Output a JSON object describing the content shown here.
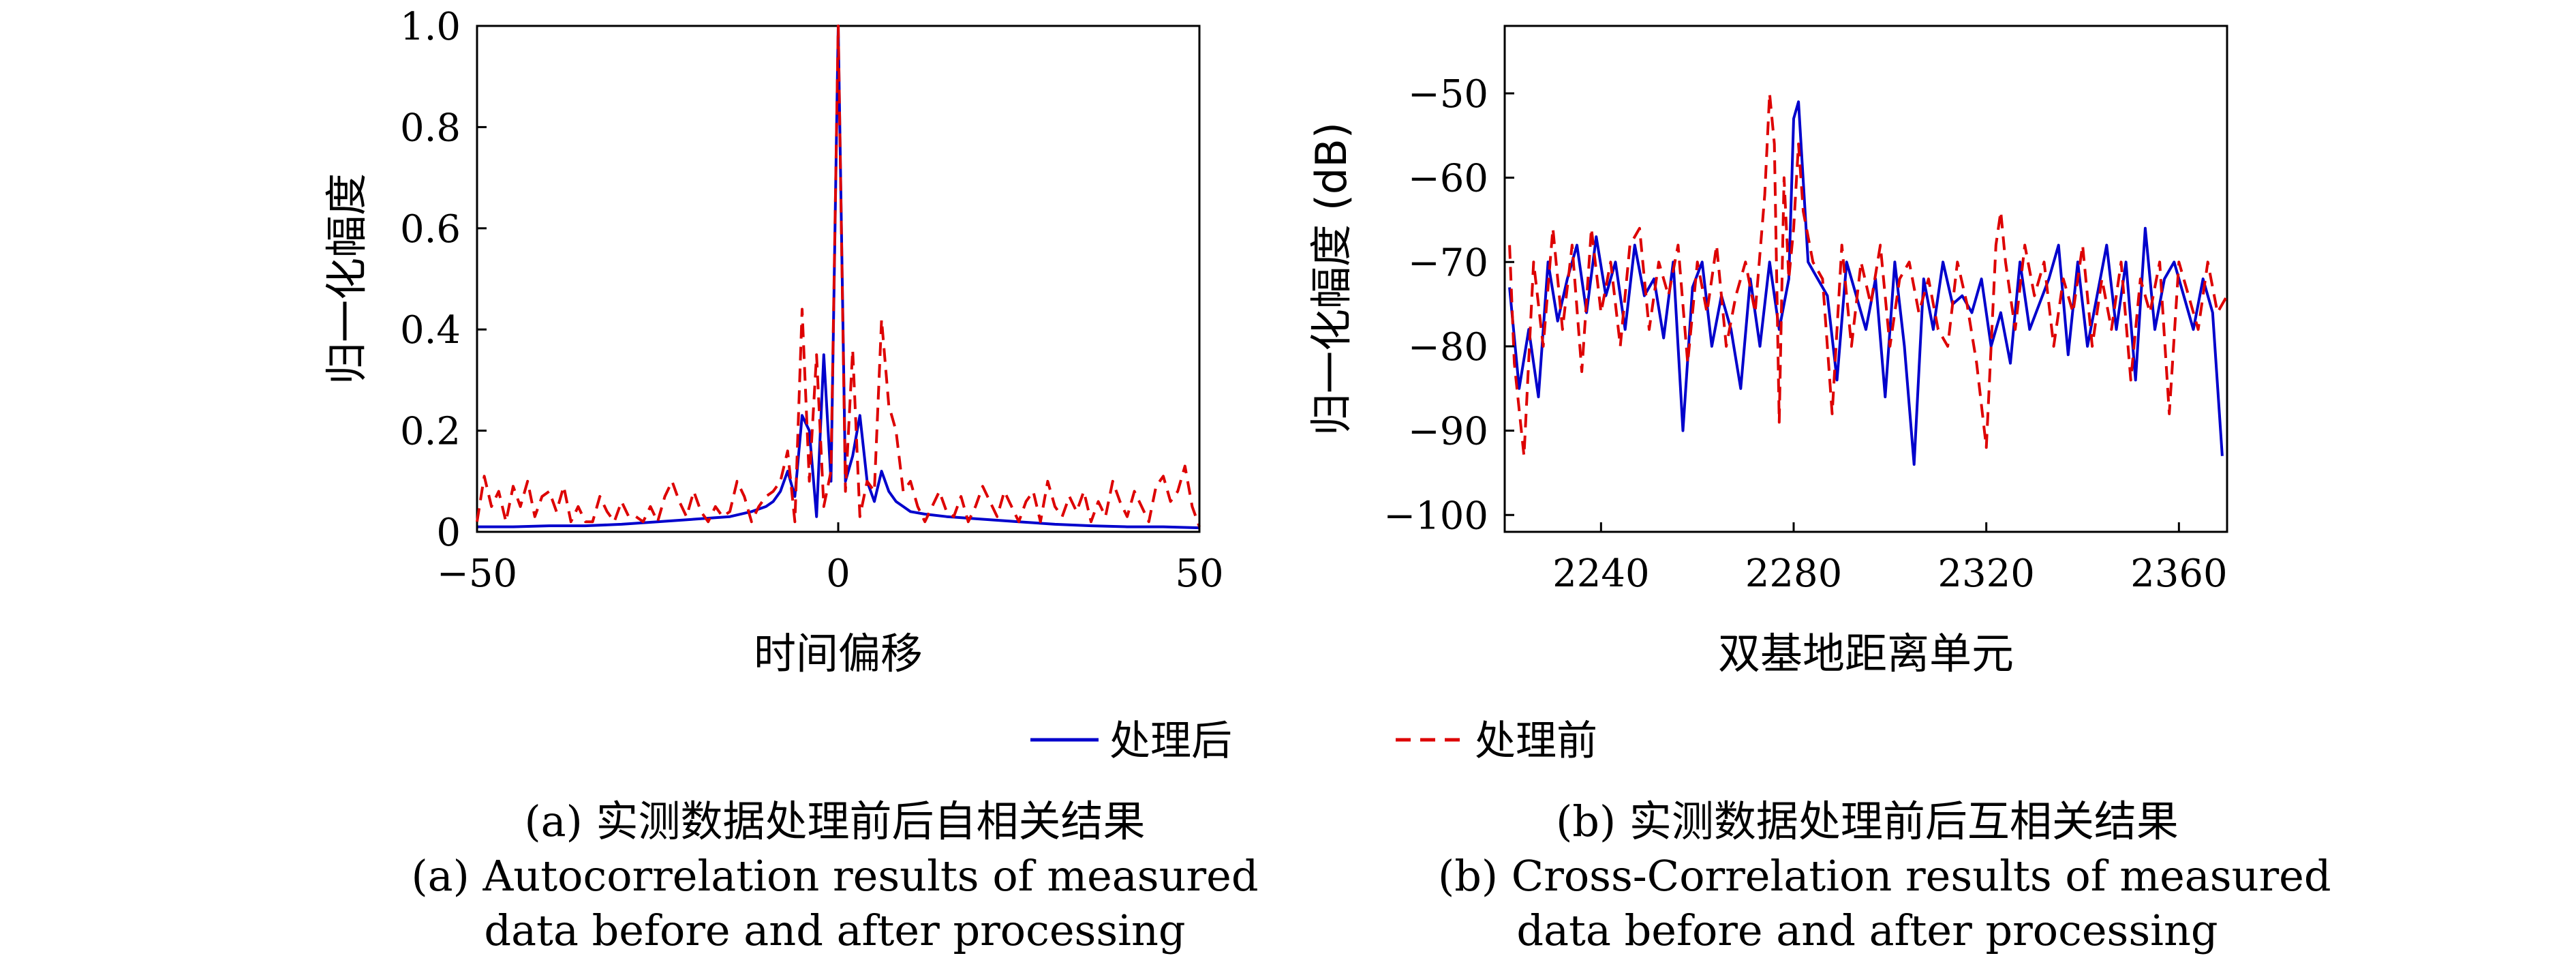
{
  "legend": {
    "after_label": "处理后",
    "before_label": "处理前",
    "after_color": "#0000cc",
    "before_color": "#dd0000"
  },
  "captions": {
    "a_zh": "(a) 实测数据处理前后自相关结果",
    "a_en_line1": "(a) Autocorrelation results of measured",
    "a_en_line2": "data before and after processing",
    "b_zh": "(b) 实测数据处理前后互相关结果",
    "b_en_line1": "(b) Cross-Correlation results of measured",
    "b_en_line2": "data before and after processing"
  },
  "chart_data": [
    {
      "type": "line",
      "xlabel": "时间偏移",
      "ylabel": "归一化幅度",
      "xlim": [
        -50,
        50
      ],
      "ylim": [
        0,
        1.0
      ],
      "xticks": [
        -50,
        0,
        50
      ],
      "xtick_labels": [
        "−50",
        "0",
        "50"
      ],
      "yticks": [
        0,
        0.2,
        0.4,
        0.6,
        0.8,
        1.0
      ],
      "ytick_labels": [
        "0",
        "0.2",
        "0.4",
        "0.6",
        "0.8",
        "1.0"
      ],
      "grid": false,
      "series": [
        {
          "name": "处理后",
          "color": "#0000cc",
          "dash": "solid",
          "x": [
            -50,
            -45,
            -40,
            -35,
            -30,
            -25,
            -20,
            -15,
            -12,
            -10,
            -9,
            -8,
            -7,
            -6,
            -5,
            -4,
            -3,
            -2,
            -1,
            0,
            1,
            2,
            3,
            4,
            5,
            6,
            7,
            8,
            9,
            10,
            12,
            15,
            20,
            25,
            30,
            35,
            40,
            45,
            50
          ],
          "y": [
            0.01,
            0.01,
            0.012,
            0.012,
            0.015,
            0.02,
            0.025,
            0.03,
            0.04,
            0.05,
            0.06,
            0.08,
            0.12,
            0.07,
            0.23,
            0.2,
            0.03,
            0.35,
            0.1,
            1.0,
            0.1,
            0.15,
            0.23,
            0.1,
            0.06,
            0.12,
            0.08,
            0.06,
            0.05,
            0.04,
            0.035,
            0.03,
            0.025,
            0.02,
            0.015,
            0.012,
            0.01,
            0.01,
            0.008
          ]
        },
        {
          "name": "处理前",
          "color": "#dd0000",
          "dash": "dashed",
          "x": [
            -50,
            -49,
            -48,
            -47,
            -46,
            -45,
            -44,
            -43,
            -42,
            -41,
            -40,
            -39,
            -38,
            -37,
            -36,
            -35,
            -34,
            -33,
            -32,
            -31,
            -30,
            -29,
            -28,
            -27,
            -26,
            -25,
            -24,
            -23,
            -22,
            -21,
            -20,
            -19,
            -18,
            -17,
            -16,
            -15,
            -14,
            -13,
            -12,
            -11,
            -10,
            -9,
            -8,
            -7,
            -6,
            -5,
            -4,
            -3,
            -2,
            -1,
            0,
            1,
            2,
            3,
            4,
            5,
            6,
            7,
            8,
            9,
            10,
            11,
            12,
            13,
            14,
            15,
            16,
            17,
            18,
            19,
            20,
            21,
            22,
            23,
            24,
            25,
            26,
            27,
            28,
            29,
            30,
            31,
            32,
            33,
            34,
            35,
            36,
            37,
            38,
            39,
            40,
            41,
            42,
            43,
            44,
            45,
            46,
            47,
            48,
            49,
            50
          ],
          "y": [
            0.02,
            0.11,
            0.05,
            0.08,
            0.02,
            0.09,
            0.05,
            0.1,
            0.03,
            0.07,
            0.08,
            0.04,
            0.09,
            0.02,
            0.05,
            0.02,
            0.02,
            0.07,
            0.04,
            0.02,
            0.06,
            0.03,
            0.03,
            0.02,
            0.05,
            0.02,
            0.07,
            0.1,
            0.06,
            0.03,
            0.08,
            0.04,
            0.02,
            0.05,
            0.03,
            0.04,
            0.1,
            0.07,
            0.02,
            0.05,
            0.07,
            0.08,
            0.1,
            0.16,
            0.02,
            0.44,
            0.1,
            0.35,
            0.05,
            0.12,
            1.0,
            0.08,
            0.36,
            0.03,
            0.1,
            0.08,
            0.42,
            0.25,
            0.2,
            0.08,
            0.1,
            0.05,
            0.02,
            0.05,
            0.08,
            0.04,
            0.03,
            0.07,
            0.02,
            0.05,
            0.09,
            0.06,
            0.03,
            0.08,
            0.05,
            0.02,
            0.06,
            0.08,
            0.02,
            0.1,
            0.05,
            0.03,
            0.07,
            0.04,
            0.08,
            0.02,
            0.06,
            0.03,
            0.1,
            0.06,
            0.03,
            0.08,
            0.05,
            0.02,
            0.09,
            0.11,
            0.06,
            0.08,
            0.13,
            0.05,
            0.01
          ]
        }
      ]
    },
    {
      "type": "line",
      "xlabel": "双基地距离单元",
      "ylabel": "归一化幅度 (dB)",
      "xlim": [
        2220,
        2370
      ],
      "ylim": [
        -102,
        -42
      ],
      "xticks": [
        2240,
        2280,
        2320,
        2360
      ],
      "xtick_labels": [
        "2240",
        "2280",
        "2320",
        "2360"
      ],
      "yticks": [
        -100,
        -90,
        -80,
        -70,
        -60,
        -50
      ],
      "ytick_labels": [
        "−100",
        "−90",
        "−80",
        "−70",
        "−60",
        "−50"
      ],
      "grid": false,
      "series": [
        {
          "name": "处理后",
          "color": "#0000cc",
          "dash": "solid",
          "x": [
            2221,
            2223,
            2225,
            2227,
            2229,
            2231,
            2233,
            2235,
            2237,
            2239,
            2241,
            2243,
            2245,
            2247,
            2249,
            2251,
            2253,
            2255,
            2257,
            2259,
            2261,
            2263,
            2265,
            2267,
            2269,
            2271,
            2273,
            2275,
            2277,
            2279,
            2280,
            2281,
            2283,
            2285,
            2287,
            2289,
            2291,
            2293,
            2295,
            2297,
            2299,
            2301,
            2303,
            2305,
            2307,
            2309,
            2311,
            2313,
            2315,
            2317,
            2319,
            2321,
            2323,
            2325,
            2327,
            2329,
            2331,
            2333,
            2335,
            2337,
            2339,
            2341,
            2343,
            2345,
            2347,
            2349,
            2351,
            2353,
            2355,
            2357,
            2359,
            2361,
            2363,
            2365,
            2367,
            2369
          ],
          "y": [
            -73,
            -85,
            -78,
            -86,
            -70,
            -77,
            -72,
            -68,
            -76,
            -67,
            -74,
            -70,
            -78,
            -68,
            -74,
            -72,
            -79,
            -70,
            -90,
            -73,
            -70,
            -80,
            -74,
            -78,
            -85,
            -72,
            -80,
            -70,
            -78,
            -72,
            -53,
            -51,
            -70,
            -72,
            -74,
            -84,
            -70,
            -74,
            -78,
            -72,
            -86,
            -70,
            -80,
            -94,
            -72,
            -78,
            -70,
            -75,
            -74,
            -76,
            -72,
            -80,
            -76,
            -82,
            -70,
            -78,
            -75,
            -72,
            -68,
            -81,
            -70,
            -80,
            -74,
            -68,
            -78,
            -70,
            -84,
            -66,
            -78,
            -72,
            -70,
            -74,
            -78,
            -72,
            -76,
            -93
          ]
        },
        {
          "name": "处理前",
          "color": "#dd0000",
          "dash": "dashed",
          "x": [
            2221,
            2222,
            2224,
            2226,
            2228,
            2230,
            2232,
            2234,
            2236,
            2238,
            2240,
            2242,
            2244,
            2246,
            2248,
            2250,
            2252,
            2254,
            2256,
            2258,
            2260,
            2262,
            2264,
            2266,
            2268,
            2270,
            2272,
            2274,
            2275,
            2276,
            2277,
            2278,
            2279,
            2280,
            2281,
            2282,
            2284,
            2286,
            2288,
            2290,
            2292,
            2294,
            2296,
            2298,
            2300,
            2302,
            2304,
            2306,
            2308,
            2310,
            2312,
            2314,
            2316,
            2318,
            2320,
            2322,
            2323,
            2324,
            2326,
            2328,
            2330,
            2332,
            2334,
            2336,
            2338,
            2340,
            2342,
            2344,
            2346,
            2348,
            2350,
            2352,
            2354,
            2356,
            2358,
            2360,
            2362,
            2364,
            2366,
            2368,
            2370
          ],
          "y": [
            -68,
            -82,
            -93,
            -70,
            -80,
            -66,
            -78,
            -68,
            -83,
            -66,
            -76,
            -70,
            -80,
            -68,
            -66,
            -78,
            -70,
            -74,
            -68,
            -82,
            -70,
            -76,
            -68,
            -80,
            -74,
            -70,
            -76,
            -62,
            -50,
            -56,
            -89,
            -60,
            -72,
            -66,
            -56,
            -64,
            -70,
            -72,
            -88,
            -68,
            -80,
            -70,
            -75,
            -68,
            -80,
            -72,
            -70,
            -76,
            -72,
            -78,
            -80,
            -70,
            -75,
            -82,
            -92,
            -68,
            -64,
            -70,
            -78,
            -68,
            -74,
            -70,
            -80,
            -72,
            -76,
            -68,
            -80,
            -72,
            -78,
            -70,
            -84,
            -72,
            -76,
            -70,
            -88,
            -70,
            -74,
            -78,
            -70,
            -76,
            -74
          ]
        }
      ]
    }
  ]
}
